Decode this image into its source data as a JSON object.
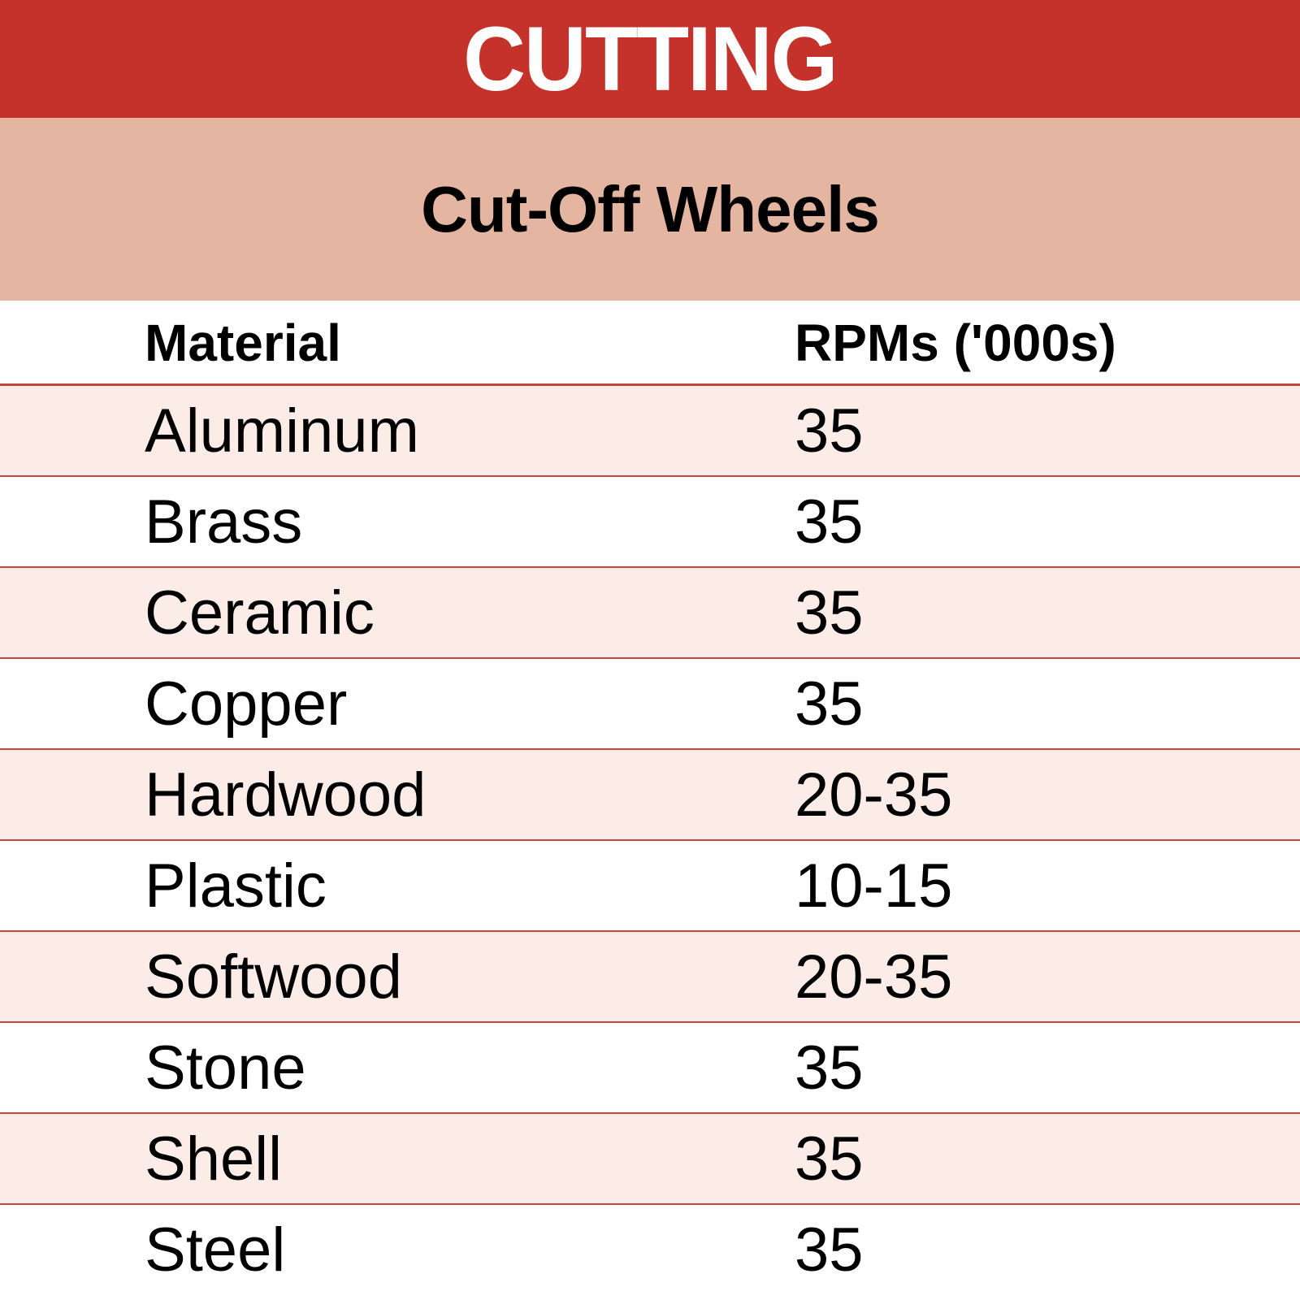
{
  "title": "CUTTING",
  "subtitle": "Cut-Off Wheels",
  "colors": {
    "title_bg": "#c4322b",
    "subtitle_bg": "#e4b5a1",
    "row_shade": "#fbece7",
    "rule": "#c4463d"
  },
  "table": {
    "headers": [
      "Material",
      "RPMs ('000s)"
    ],
    "rows": [
      {
        "material": "Aluminum",
        "rpm": "35"
      },
      {
        "material": "Brass",
        "rpm": "35"
      },
      {
        "material": "Ceramic",
        "rpm": "35"
      },
      {
        "material": "Copper",
        "rpm": "35"
      },
      {
        "material": "Hardwood",
        "rpm": "20-35"
      },
      {
        "material": "Plastic",
        "rpm": "10-15"
      },
      {
        "material": "Softwood",
        "rpm": "20-35"
      },
      {
        "material": "Stone",
        "rpm": "35"
      },
      {
        "material": "Shell",
        "rpm": "35"
      },
      {
        "material": "Steel",
        "rpm": "35"
      }
    ]
  }
}
